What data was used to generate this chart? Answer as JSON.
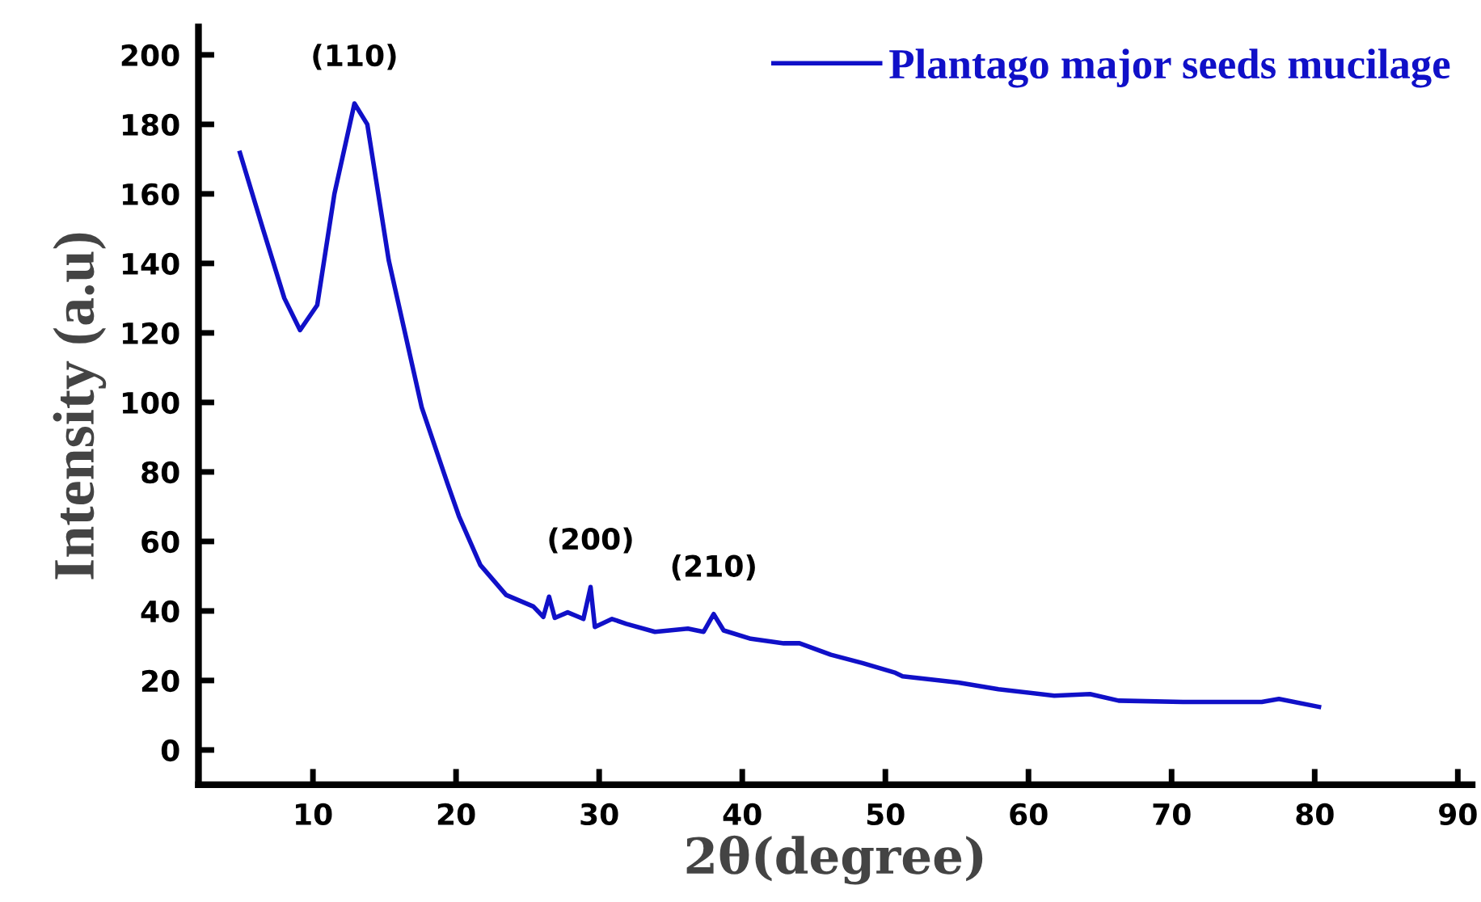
{
  "chart_data": {
    "type": "line",
    "xlabel": "2θ(degree)",
    "ylabel": "Intensity (a.u)",
    "xlim": [
      2,
      91
    ],
    "ylim": [
      -10,
      208
    ],
    "xticks": [
      10,
      20,
      30,
      40,
      50,
      60,
      70,
      80,
      90
    ],
    "yticks": [
      0,
      20,
      40,
      60,
      80,
      100,
      120,
      140,
      160,
      180,
      200
    ],
    "grid": false,
    "legend": "top right",
    "marker": "none",
    "line_style": "solid",
    "annotations": [
      {
        "text": "(110)",
        "x": 12.9,
        "y": 186
      },
      {
        "text": "(200)",
        "x": 29.4,
        "y": 46.9
      },
      {
        "text": "(210)",
        "x": 38.0,
        "y": 39.1
      }
    ],
    "series": [
      {
        "name": "Plantago major seeds mucilage",
        "color": "#1010c8",
        "x": [
          4.9,
          6.5,
          8.0,
          9.1,
          10.3,
          11.5,
          12.9,
          13.8,
          15.3,
          17.6,
          19.4,
          20.2,
          21.7,
          23.5,
          25.4,
          26.1,
          26.5,
          26.9,
          27.8,
          28.9,
          29.4,
          29.7,
          30.9,
          31.9,
          33.9,
          36.2,
          37.3,
          38.0,
          38.7,
          40.6,
          42.9,
          44.0,
          46.2,
          48.4,
          50.7,
          51.2,
          55.1,
          57.9,
          61.8,
          64.3,
          66.3,
          70.8,
          76.3,
          77.5,
          80.3
        ],
        "values": [
          171.8,
          150,
          130,
          120.8,
          128,
          160,
          186,
          180,
          140.8,
          98.6,
          76.7,
          67.3,
          53.2,
          44.6,
          41.3,
          38.3,
          44.1,
          38.0,
          39.6,
          37.7,
          46.9,
          35.4,
          37.7,
          36.3,
          34.0,
          34.9,
          34.0,
          39.1,
          34.4,
          32.0,
          30.7,
          30.7,
          27.4,
          25.0,
          22.2,
          21.2,
          19.4,
          17.5,
          15.6,
          16.1,
          14.2,
          13.8,
          13.8,
          14.7,
          12.4
        ]
      }
    ]
  }
}
